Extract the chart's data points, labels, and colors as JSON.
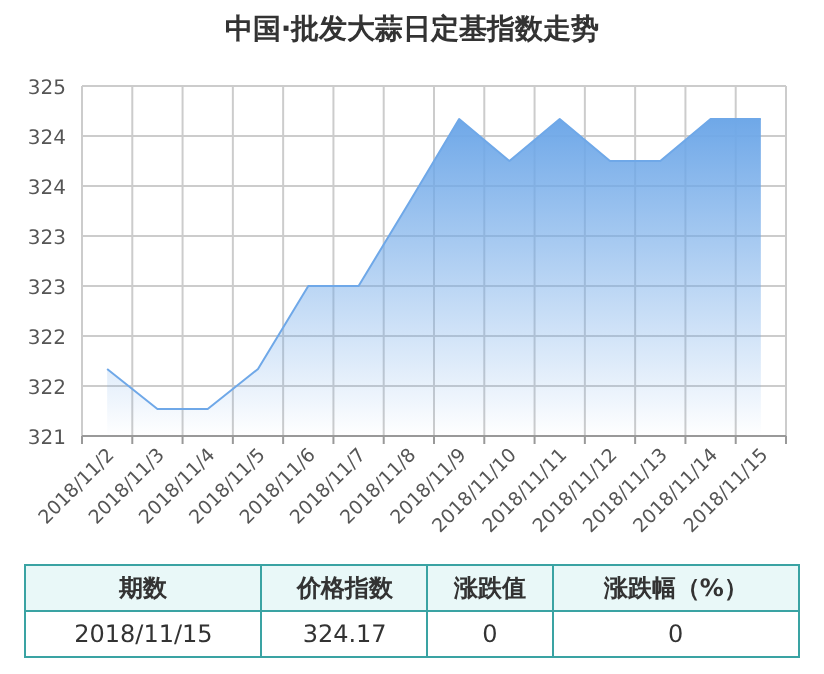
{
  "chart_data": {
    "type": "area",
    "title": "中国·批发大蒜日定基指数走势",
    "categories": [
      "2018/11/2",
      "2018/11/3",
      "2018/11/4",
      "2018/11/5",
      "2018/11/6",
      "2018/11/7",
      "2018/11/8",
      "2018/11/9",
      "2018/11/10",
      "2018/11/11",
      "2018/11/12",
      "2018/11/13",
      "2018/11/14",
      "2018/11/15"
    ],
    "series": [
      {
        "color": "#6fa8e8",
        "values": [
          321.67,
          321.27,
          321.27,
          321.67,
          322.5,
          322.5,
          323.33,
          324.17,
          323.75,
          324.17,
          323.75,
          323.75,
          324.17,
          324.17
        ]
      }
    ],
    "ylim": [
      321,
      324.5
    ],
    "yticks": [
      321,
      {
        "value": 321.5,
        "label": "322"
      },
      322,
      {
        "value": 322.5,
        "label": "323"
      },
      323,
      {
        "value": 323.5,
        "label": "324"
      },
      324,
      {
        "value": 324.5,
        "label": "325"
      }
    ],
    "grid": true,
    "annotations": [
      "期数",
      "价格指数",
      "涨跌值",
      "涨跌幅（%）",
      "2018/11/15",
      "324.17",
      "0",
      "0"
    ]
  }
}
